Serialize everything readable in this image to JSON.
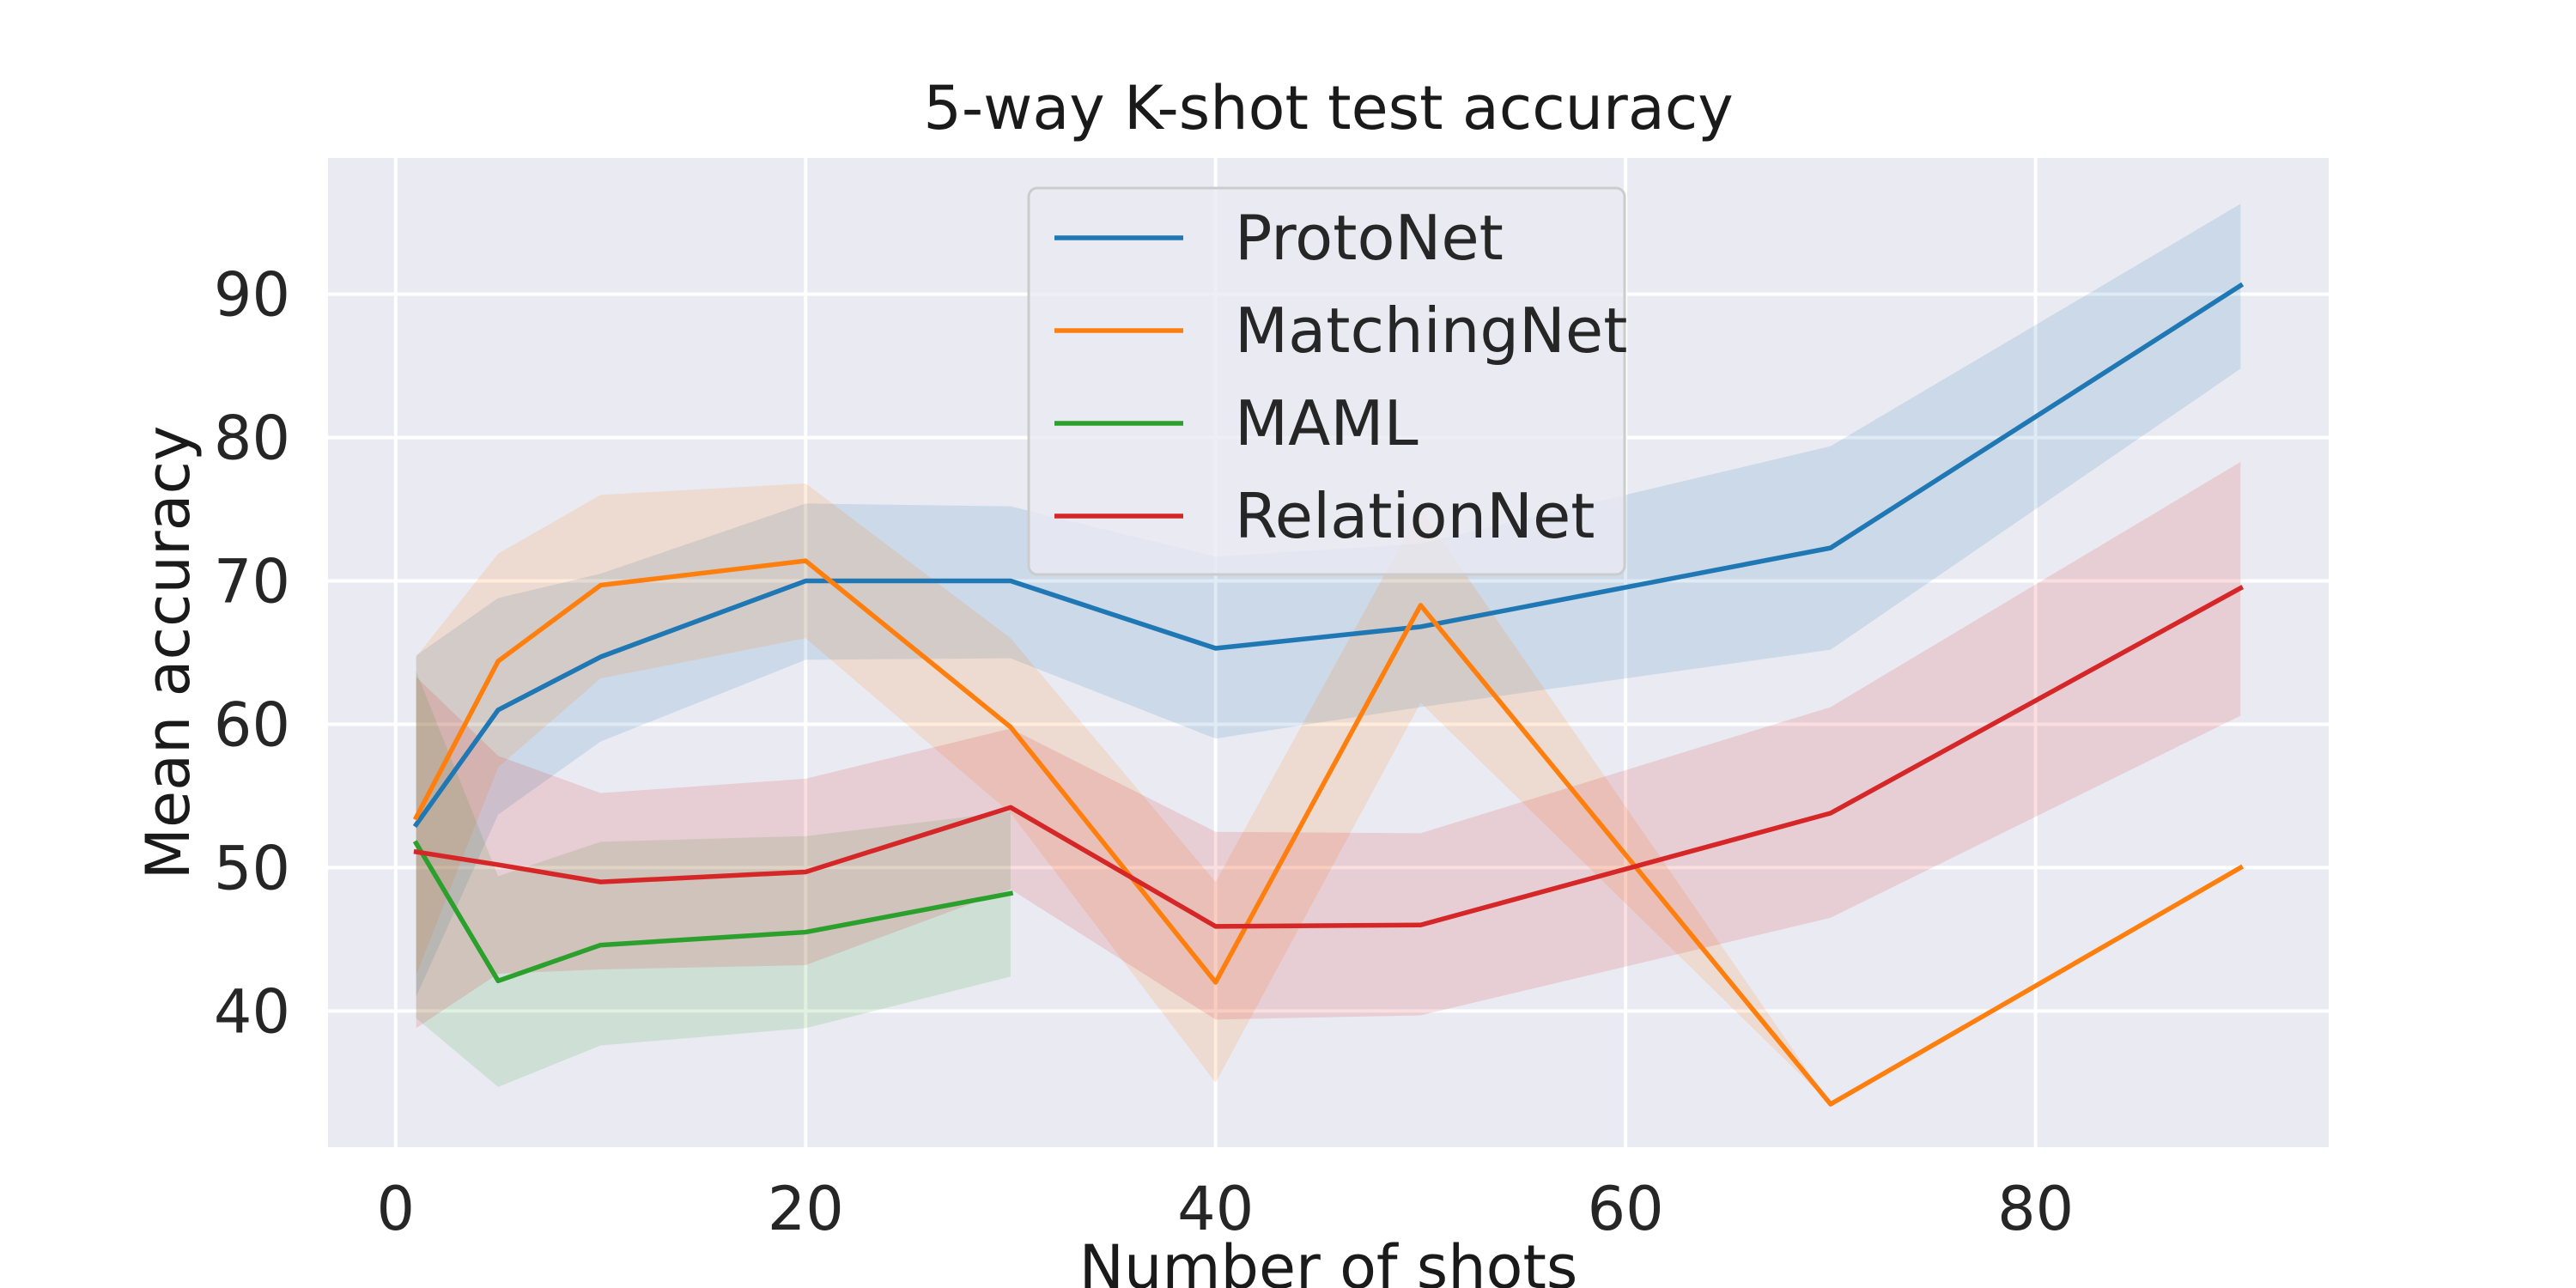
{
  "chart_data": {
    "type": "line",
    "title": "5-way K-shot test accuracy",
    "xlabel": "Number of shots",
    "ylabel": "Mean accuracy",
    "xlim": [
      -3.3,
      94.3
    ],
    "ylim": [
      30.5,
      99.5
    ],
    "xticks": [
      0,
      20,
      40,
      60,
      80
    ],
    "yticks": [
      40,
      50,
      60,
      70,
      80,
      90
    ],
    "grid": true,
    "legend_position": "top-center",
    "series": [
      {
        "name": "ProtoNet",
        "color": "#1f77b4",
        "x": [
          1,
          5,
          10,
          20,
          30,
          40,
          50,
          70,
          90
        ],
        "y": [
          53.0,
          61.0,
          64.7,
          70.0,
          70.0,
          65.3,
          66.8,
          72.3,
          90.6
        ],
        "lower": [
          41.0,
          53.7,
          58.8,
          64.5,
          64.6,
          59.0,
          61.2,
          65.2,
          84.8
        ],
        "upper": [
          64.8,
          68.8,
          70.5,
          75.4,
          75.2,
          71.7,
          72.6,
          79.4,
          96.3
        ]
      },
      {
        "name": "MatchingNet",
        "color": "#ff7f0e",
        "x": [
          1,
          5,
          10,
          20,
          30,
          40,
          50,
          70,
          90
        ],
        "y": [
          53.5,
          64.4,
          69.7,
          71.4,
          59.8,
          42.0,
          68.3,
          33.5,
          50.0
        ],
        "lower": [
          42.5,
          57.0,
          63.2,
          66.0,
          53.8,
          35.0,
          61.5,
          33.5,
          50.0
        ],
        "upper": [
          64.7,
          71.9,
          76.0,
          76.8,
          66.0,
          49.0,
          75.0,
          33.5,
          50.0
        ]
      },
      {
        "name": "MAML",
        "color": "#2ca02c",
        "x": [
          1,
          5,
          10,
          20,
          30
        ],
        "y": [
          51.7,
          42.1,
          44.6,
          45.5,
          48.2
        ],
        "lower": [
          39.5,
          34.7,
          37.6,
          38.8,
          42.4
        ],
        "upper": [
          63.7,
          49.4,
          51.8,
          52.2,
          53.9
        ]
      },
      {
        "name": "RelationNet",
        "color": "#d62728",
        "x": [
          1,
          5,
          10,
          20,
          30,
          40,
          50,
          70,
          90
        ],
        "y": [
          51.1,
          50.2,
          49.0,
          49.7,
          54.2,
          45.9,
          46.0,
          53.8,
          69.5
        ],
        "lower": [
          38.8,
          42.6,
          42.9,
          43.2,
          48.5,
          39.4,
          39.7,
          46.5,
          60.6
        ],
        "upper": [
          63.3,
          57.8,
          55.2,
          56.2,
          59.7,
          52.5,
          52.4,
          61.2,
          78.3
        ]
      }
    ]
  }
}
